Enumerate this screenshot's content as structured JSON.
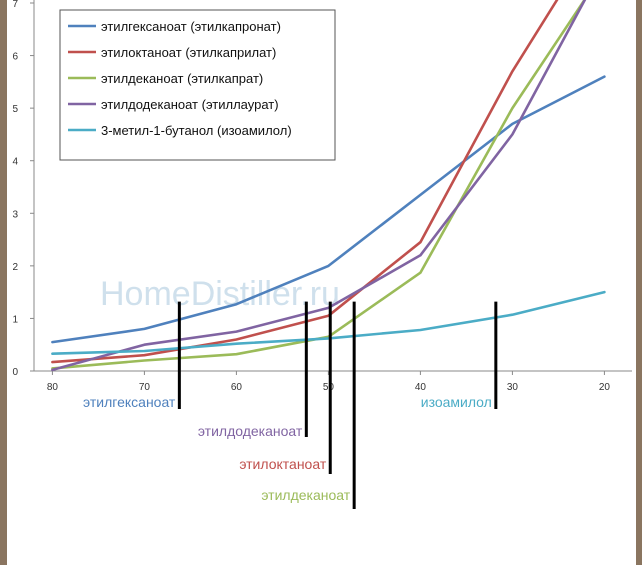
{
  "watermark": "HomeDistiller.ru",
  "chart_data": {
    "type": "line",
    "x": [
      80,
      70,
      60,
      50,
      40,
      30,
      20
    ],
    "xlim": [
      82,
      17
    ],
    "ylim": [
      0,
      7
    ],
    "yticks": [
      0,
      1,
      2,
      3,
      4,
      5,
      6,
      7
    ],
    "xticks": [
      80,
      70,
      60,
      50,
      40,
      30,
      20
    ],
    "grid": false,
    "legend_position": "top-left",
    "series": [
      {
        "name": "этилгексаноат (этилкапронат)",
        "color": "#4f81bd",
        "points": [
          [
            80,
            0.55
          ],
          [
            70,
            0.8
          ],
          [
            60,
            1.27
          ],
          [
            50,
            2.0
          ],
          [
            40,
            3.35
          ],
          [
            30,
            4.7
          ],
          [
            20,
            5.6
          ]
        ]
      },
      {
        "name": "этилоктаноат (этилкаприлат)",
        "color": "#c0504d",
        "points": [
          [
            80,
            0.17
          ],
          [
            70,
            0.3
          ],
          [
            60,
            0.6
          ],
          [
            50,
            1.05
          ],
          [
            40,
            2.45
          ],
          [
            30,
            5.7
          ],
          [
            25,
            7.1
          ]
        ]
      },
      {
        "name": "этилдеканоат (этилкапрат)",
        "color": "#9bbb59",
        "points": [
          [
            80,
            0.05
          ],
          [
            70,
            0.2
          ],
          [
            60,
            0.32
          ],
          [
            50,
            0.65
          ],
          [
            40,
            1.87
          ],
          [
            30,
            5.0
          ],
          [
            22,
            7.1
          ]
        ]
      },
      {
        "name": "этилдодеканоат (этиллаурат)",
        "color": "#8064a2",
        "points": [
          [
            80,
            0.02
          ],
          [
            70,
            0.5
          ],
          [
            60,
            0.75
          ],
          [
            50,
            1.2
          ],
          [
            40,
            2.2
          ],
          [
            30,
            4.5
          ],
          [
            22,
            7.1
          ]
        ]
      },
      {
        "name": "3-метил-1-бутанол (изоамилол)",
        "color": "#4bacc6",
        "points": [
          [
            80,
            0.33
          ],
          [
            70,
            0.38
          ],
          [
            60,
            0.52
          ],
          [
            50,
            0.62
          ],
          [
            40,
            0.78
          ],
          [
            30,
            1.07
          ],
          [
            20,
            1.5
          ]
        ]
      }
    ],
    "annotations": [
      {
        "text": "этилгексаноат",
        "color": "#4f81bd",
        "line_x": 66.2,
        "line_depth": 0
      },
      {
        "text": "этилдодеканоат",
        "color": "#8064a2",
        "line_x": 52.4,
        "line_depth": 1
      },
      {
        "text": "этилоктаноат",
        "color": "#c0504d",
        "line_x": 49.8,
        "line_depth": 2
      },
      {
        "text": "этилдеканоат",
        "color": "#9bbb59",
        "line_x": 47.2,
        "line_depth": 3
      },
      {
        "text": "изоамилол",
        "color": "#4bacc6",
        "line_x": 31.8,
        "line_depth": 0
      }
    ]
  }
}
